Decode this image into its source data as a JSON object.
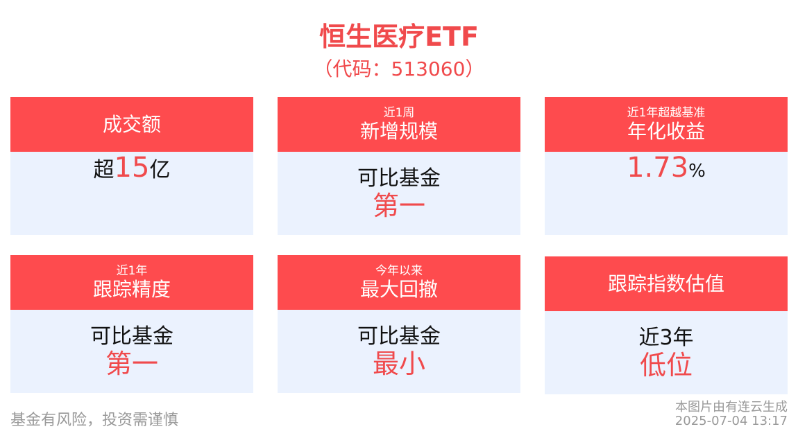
{
  "title": "恒生医疗ETF",
  "code": "（代码：513060）",
  "cards": [
    {
      "sub": "",
      "main": "成交额",
      "pre": "超",
      "value": "15",
      "post": "亿"
    },
    {
      "sub": "近1周",
      "main": "新增规模",
      "line1": "可比基金",
      "line2": "第一"
    },
    {
      "sub": "近1年超越基准",
      "main": "年化收益",
      "value": "1.73",
      "post": "%"
    },
    {
      "sub": "近1年",
      "main": "跟踪精度",
      "line1": "可比基金",
      "line2": "第一"
    },
    {
      "sub": "今年以来",
      "main": "最大回撤",
      "line1": "可比基金",
      "line2": "最小"
    },
    {
      "sub": "",
      "main": "跟踪指数估值",
      "line1": "近3年",
      "line2": "低位"
    }
  ],
  "footer": {
    "risk": "基金有风险，投资需谨慎",
    "source": "本图片由有连云生成",
    "timestamp": "2025-07-04 13:17"
  }
}
